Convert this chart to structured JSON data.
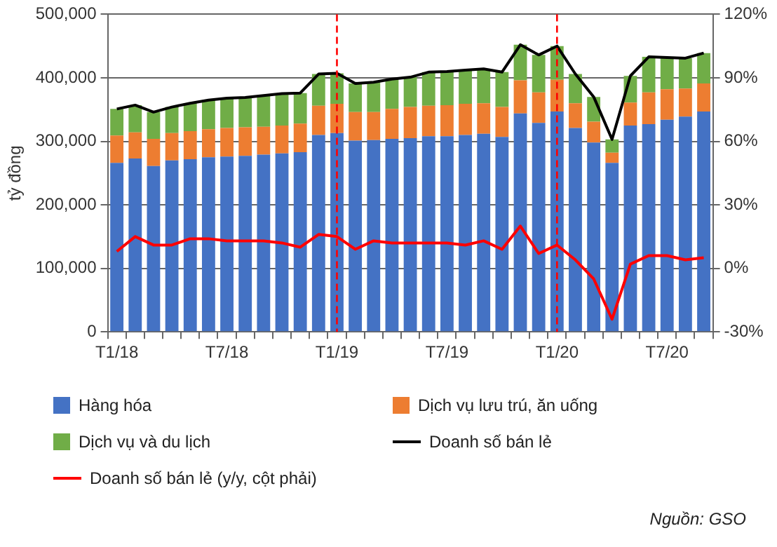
{
  "chart_data": {
    "type": "bar",
    "stacked": true,
    "ylabel": "tỷ đồng",
    "categories": [
      "T1/18",
      null,
      null,
      null,
      null,
      null,
      "T7/18",
      null,
      null,
      null,
      null,
      null,
      "T1/19",
      null,
      null,
      null,
      null,
      null,
      "T7/19",
      null,
      null,
      null,
      null,
      null,
      "T1/20",
      null,
      null,
      null,
      null,
      null,
      "T7/20",
      null,
      null
    ],
    "series": [
      {
        "name": "Hàng hóa",
        "color": "#4472c4",
        "values": [
          266000,
          273000,
          261000,
          270000,
          272000,
          275000,
          276000,
          277000,
          279000,
          281000,
          283000,
          310000,
          313000,
          301000,
          302000,
          304000,
          305000,
          308000,
          308000,
          310000,
          312000,
          307000,
          344000,
          329000,
          347000,
          321000,
          298000,
          266000,
          325000,
          327000,
          334000,
          339000,
          347000
        ]
      },
      {
        "name": "Dịch vụ lưu trú, ăn uống",
        "color": "#ed7d31",
        "values": [
          43000,
          41000,
          43000,
          43000,
          44000,
          44000,
          45000,
          45000,
          44000,
          44000,
          45000,
          46000,
          46000,
          45000,
          44000,
          47000,
          49000,
          48000,
          49000,
          49000,
          48000,
          47000,
          52000,
          48000,
          50000,
          39000,
          33000,
          16000,
          36000,
          50000,
          48000,
          44000,
          44000
        ]
      },
      {
        "name": "Dịch vụ và du lịch",
        "color": "#70ad47",
        "values": [
          42000,
          43000,
          42000,
          41000,
          44000,
          46000,
          47000,
          47000,
          49000,
          50000,
          48000,
          50000,
          48000,
          45000,
          47000,
          47000,
          47000,
          53000,
          53000,
          53000,
          54000,
          55000,
          56000,
          59000,
          53000,
          46000,
          39000,
          21000,
          42000,
          56000,
          50000,
          48000,
          48000
        ]
      },
      {
        "name": "Doanh số bán lẻ",
        "type": "line",
        "color": "#000000",
        "values": [
          351000,
          357000,
          346000,
          354000,
          360000,
          365000,
          368000,
          369000,
          372000,
          375000,
          376000,
          406000,
          407000,
          391000,
          393000,
          398000,
          401000,
          409000,
          410000,
          412000,
          414000,
          409000,
          452000,
          436000,
          450000,
          406000,
          370000,
          303000,
          403000,
          433000,
          432000,
          431000,
          439000
        ]
      },
      {
        "name": "Doanh số bán lẻ (y/y, cột phải)",
        "type": "line",
        "axis": "y2",
        "color": "#ff0000",
        "values": [
          8,
          15,
          11,
          11,
          14,
          14,
          13,
          13,
          13,
          12,
          10,
          16,
          15,
          9,
          13,
          12,
          12,
          12,
          12,
          11,
          13,
          9,
          20,
          7,
          11,
          4,
          -5,
          -24,
          2,
          6,
          6,
          4,
          5
        ]
      }
    ],
    "ylim": [
      0,
      500000
    ],
    "yticks": [
      {
        "value": 0,
        "label": "0"
      },
      {
        "value": 100000,
        "label": "100,000"
      },
      {
        "value": 200000,
        "label": "200,000"
      },
      {
        "value": 300000,
        "label": "300,000"
      },
      {
        "value": 400000,
        "label": "400,000"
      },
      {
        "value": 500000,
        "label": "500,000"
      }
    ],
    "y2lim": [
      -30,
      120
    ],
    "y2ticks": [
      {
        "value": -30,
        "label": "-30%"
      },
      {
        "value": 0,
        "label": "0%"
      },
      {
        "value": 30,
        "label": "30%"
      },
      {
        "value": 60,
        "label": "60%"
      },
      {
        "value": 90,
        "label": "90%"
      },
      {
        "value": 120,
        "label": "120%"
      }
    ],
    "ref_lines": [
      {
        "axis": "x",
        "value": "T1/19",
        "color": "#ff0000",
        "line_style": "dashed"
      },
      {
        "axis": "x",
        "value": "T1/20",
        "color": "#ff0000",
        "line_style": "dashed"
      }
    ],
    "grid": "y",
    "legend": "bottom",
    "marker": "none",
    "line_style": "solid",
    "annotations": [
      "Nguồn: GSO"
    ]
  }
}
